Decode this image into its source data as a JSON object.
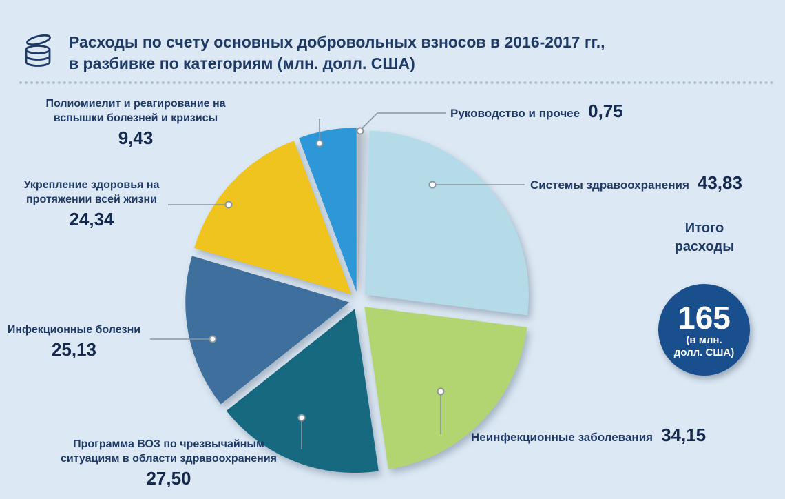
{
  "page": {
    "background": "#dce8f3"
  },
  "header": {
    "icon": "coins-icon",
    "title_line1": "Расходы по счету основных добровольных взносов в 2016-2017 гг.,",
    "title_line2": "в разбивке по категориям (млн. долл. США)"
  },
  "chart_data": {
    "type": "pie",
    "title": "Расходы по счету основных добровольных взносов в 2016-2017 гг., в разбивке по категориям (млн. долл. США)",
    "unit": "млн. долл. США",
    "total_value": 165,
    "start_angle_deg": 0,
    "direction": "clockwise",
    "exploded": true,
    "slices": [
      {
        "label": "Руководство и прочее",
        "value": 0.75,
        "value_text": "0,75",
        "color": "#c9ced3"
      },
      {
        "label": "Системы здравоохранения",
        "value": 43.83,
        "value_text": "43,83",
        "color": "#b4dbe7"
      },
      {
        "label": "Неинфекционные заболевания",
        "value": 34.15,
        "value_text": "34,15",
        "color": "#b2d572"
      },
      {
        "label": "Программа ВОЗ по чрезвычайным ситуациям в области здравоохранения",
        "value": 27.5,
        "value_text": "27,50",
        "color": "#16697f"
      },
      {
        "label": "Инфекционные болезни",
        "value": 25.13,
        "value_text": "25,13",
        "color": "#3e6f9d"
      },
      {
        "label": "Укрепление здоровья на протяжении всей жизни",
        "value": 24.34,
        "value_text": "24,34",
        "color": "#f0c41e"
      },
      {
        "label": "Полиомиелит и реагирование на вспышки болезней и кризисы",
        "value": 9.43,
        "value_text": "9,43",
        "color": "#2e97d8"
      }
    ]
  },
  "total_badge": {
    "label_line1": "Итого",
    "label_line2": "расходы",
    "value": "165",
    "unit_line1": "(в млн.",
    "unit_line2": "долл. США)"
  }
}
